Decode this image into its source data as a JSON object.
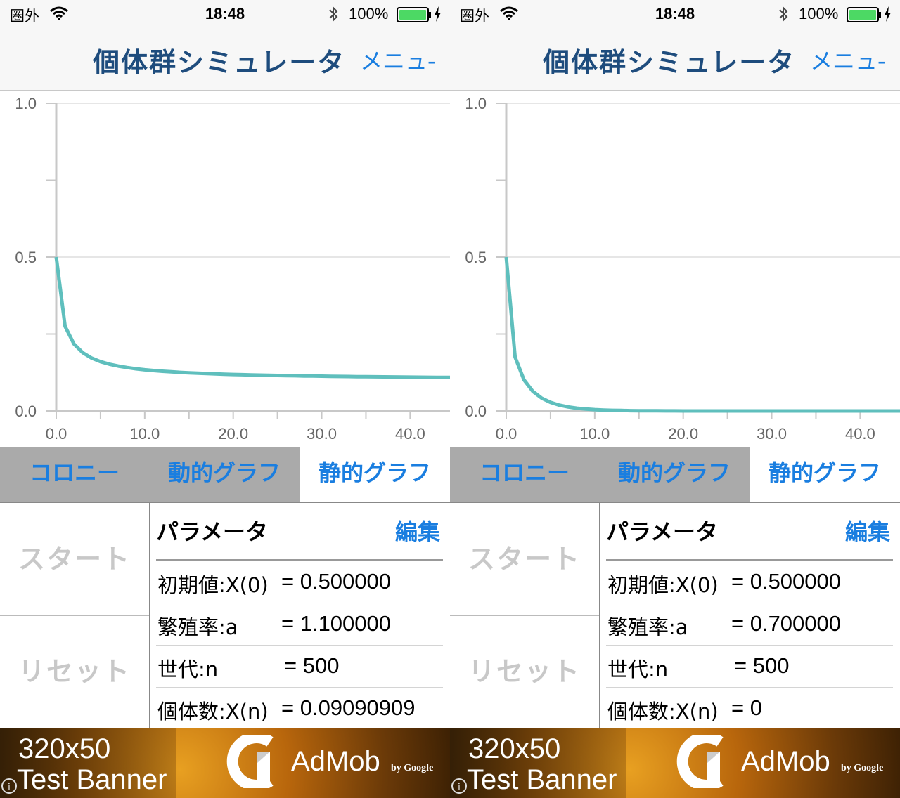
{
  "screens": [
    {
      "status": {
        "carrier": "圏外",
        "time": "18:48",
        "battery": "100%"
      },
      "nav": {
        "title": "個体群シミュレータ",
        "menu": "メニュ-"
      },
      "chart_data": {
        "type": "line",
        "x": [
          0,
          1,
          2,
          3,
          4,
          5,
          6,
          7,
          8,
          9,
          10,
          11,
          12,
          13,
          14,
          15,
          16,
          17,
          18,
          19,
          20,
          21,
          22,
          23,
          24,
          25,
          26,
          27,
          28,
          29,
          30,
          31,
          32,
          33,
          34,
          35,
          36,
          37,
          38,
          39,
          40,
          41,
          42,
          43,
          44,
          45
        ],
        "series": [
          {
            "values": [
              0.5,
              0.275,
              0.2178,
              0.1892,
              0.1719,
              0.1603,
              0.152,
              0.1458,
              0.141,
              0.1371,
              0.1339,
              0.1313,
              0.129,
              0.1271,
              0.1254,
              0.1239,
              0.1226,
              0.1215,
              0.1204,
              0.1195,
              0.1186,
              0.1179,
              0.1171,
              0.1165,
              0.1159,
              0.1153,
              0.1148,
              0.1143,
              0.1138,
              0.1134,
              0.113,
              0.1126,
              0.1122,
              0.1119,
              0.1115,
              0.1112,
              0.1109,
              0.1107,
              0.1104,
              0.1101,
              0.1099,
              0.1097,
              0.1094,
              0.1092,
              0.109,
              0.1088
            ],
            "color": "#5fbfbd"
          }
        ],
        "xlim": [
          0,
          44.5
        ],
        "ylim": [
          0,
          1.0
        ],
        "x_ticks": [
          "0.0",
          "10.0",
          "20.0",
          "30.0",
          "40.0"
        ],
        "y_ticks": [
          "0.0",
          "0.5",
          "1.0"
        ],
        "grid": true
      },
      "tabs": [
        {
          "label": "コロニー",
          "active": false
        },
        {
          "label": "動的グラフ",
          "active": false
        },
        {
          "label": "静的グラフ",
          "active": true
        }
      ],
      "controls": {
        "start": "スタート",
        "reset": "リセット"
      },
      "params": {
        "header": "パラメータ",
        "edit": "編集",
        "rows": [
          {
            "label": "初期値:X(0)",
            "value": "= 0.500000"
          },
          {
            "label": "繁殖率:a",
            "value": "= 1.100000"
          },
          {
            "label": "世代:n",
            "value": "= 500"
          },
          {
            "label": "個体数:X(n)",
            "value": "= 0.09090909"
          }
        ]
      },
      "ad": {
        "size": "320x50",
        "text": "Test Banner",
        "brand": "AdMob",
        "by": "by Google",
        "info": "i"
      }
    },
    {
      "status": {
        "carrier": "圏外",
        "time": "18:48",
        "battery": "100%"
      },
      "nav": {
        "title": "個体群シミュレータ",
        "menu": "メニュ-"
      },
      "chart_data": {
        "type": "line",
        "x": [
          0,
          1,
          2,
          3,
          4,
          5,
          6,
          7,
          8,
          9,
          10,
          11,
          12,
          13,
          14,
          15,
          16,
          17,
          18,
          19,
          20,
          21,
          22,
          23,
          24,
          25,
          26,
          27,
          28,
          29,
          30,
          31,
          32,
          33,
          34,
          35,
          36,
          37,
          38,
          39,
          40,
          41,
          42,
          43,
          44,
          45
        ],
        "series": [
          {
            "values": [
              0.5,
              0.175,
              0.1011,
              0.0636,
              0.0417,
              0.028,
              0.019,
              0.0131,
              0.009,
              0.0063,
              0.0043,
              0.003,
              0.0021,
              0.0015,
              0.001,
              0.0007,
              0.0005,
              0.0004,
              0.0003,
              0.0002,
              0.0001,
              0.0001,
              0,
              0,
              0,
              0,
              0,
              0,
              0,
              0,
              0,
              0,
              0,
              0,
              0,
              0,
              0,
              0,
              0,
              0,
              0,
              0,
              0,
              0,
              0,
              0
            ],
            "color": "#5fbfbd"
          }
        ],
        "xlim": [
          0,
          44.5
        ],
        "ylim": [
          0,
          1.0
        ],
        "x_ticks": [
          "0.0",
          "10.0",
          "20.0",
          "30.0",
          "40.0"
        ],
        "y_ticks": [
          "0.0",
          "0.5",
          "1.0"
        ],
        "grid": true
      },
      "tabs": [
        {
          "label": "コロニー",
          "active": false
        },
        {
          "label": "動的グラフ",
          "active": false
        },
        {
          "label": "静的グラフ",
          "active": true
        }
      ],
      "controls": {
        "start": "スタート",
        "reset": "リセット"
      },
      "params": {
        "header": "パラメータ",
        "edit": "編集",
        "rows": [
          {
            "label": "初期値:X(0)",
            "value": "= 0.500000"
          },
          {
            "label": "繁殖率:a",
            "value": "= 0.700000"
          },
          {
            "label": "世代:n",
            "value": "= 500"
          },
          {
            "label": "個体数:X(n)",
            "value": "= 0"
          }
        ]
      },
      "ad": {
        "size": "320x50",
        "text": "Test Banner",
        "brand": "AdMob",
        "by": "by Google",
        "info": "i"
      }
    }
  ]
}
